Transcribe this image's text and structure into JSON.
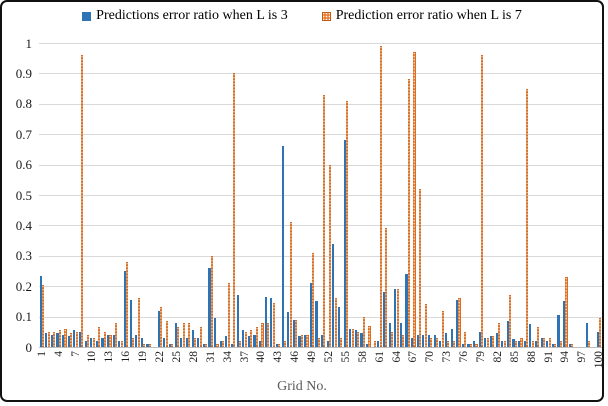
{
  "palette": {
    "series1_blue": "#2E74B5",
    "series2_orange": "#ED7D31",
    "gridline_gray": "#D9D9D9",
    "axis_title_gray": "#595959",
    "tick_text": "#1a1a1a",
    "frame_border": "#111111"
  },
  "legend": {
    "items": [
      {
        "label": "Predictions error ratio when L is 3",
        "marker": "solid-blue-square"
      },
      {
        "label": "Prediction error ratio when L is 7",
        "marker": "dotted-orange-square"
      }
    ]
  },
  "chart_data": {
    "type": "bar",
    "title": "",
    "xlabel": "Grid No.",
    "ylabel": "",
    "ylim": [
      0,
      1
    ],
    "ytick_labels": [
      "0",
      "0.1",
      "0.2",
      "0.3",
      "0.4",
      "0.5",
      "0.6",
      "0.7",
      "0.8",
      "0.9",
      "1"
    ],
    "grid": true,
    "legend_position": "top",
    "categories": [
      1,
      2,
      3,
      4,
      5,
      6,
      7,
      8,
      9,
      10,
      11,
      12,
      13,
      14,
      15,
      16,
      17,
      18,
      19,
      20,
      21,
      22,
      23,
      24,
      25,
      26,
      27,
      28,
      29,
      30,
      31,
      32,
      33,
      34,
      35,
      36,
      37,
      38,
      39,
      40,
      41,
      42,
      43,
      44,
      45,
      46,
      47,
      48,
      49,
      50,
      51,
      52,
      53,
      54,
      55,
      56,
      57,
      58,
      59,
      60,
      61,
      62,
      63,
      64,
      65,
      66,
      67,
      68,
      69,
      70,
      71,
      72,
      73,
      74,
      75,
      76,
      77,
      78,
      79,
      80,
      81,
      82,
      83,
      84,
      85,
      86,
      87,
      88,
      89,
      90,
      91,
      92,
      93,
      94,
      95,
      96,
      97,
      98,
      99,
      100
    ],
    "xtick_labels_shown": [
      "1",
      "4",
      "7",
      "10",
      "13",
      "16",
      "19",
      "22",
      "25",
      "28",
      "31",
      "34",
      "37",
      "40",
      "43",
      "46",
      "49",
      "52",
      "55",
      "58",
      "61",
      "64",
      "67",
      "70",
      "73",
      "76",
      "79",
      "82",
      "85",
      "88",
      "91",
      "94",
      "97",
      "100"
    ],
    "series": [
      {
        "name": "Predictions error ratio when L is 3",
        "color": "#2E74B5",
        "pattern": "solid",
        "values": [
          0.235,
          0.045,
          0.04,
          0.045,
          0.04,
          0.035,
          0.055,
          0.05,
          0.02,
          0.03,
          0.02,
          0.03,
          0.04,
          0.04,
          0.02,
          0.25,
          0.155,
          0.04,
          0.03,
          0.01,
          0,
          0.12,
          0.03,
          0.01,
          0.08,
          0.03,
          0.03,
          0.055,
          0.03,
          0.01,
          0.26,
          0.095,
          0.02,
          0.035,
          0.01,
          0.17,
          0.055,
          0.035,
          0.04,
          0.02,
          0.165,
          0.16,
          0.01,
          0.66,
          0.115,
          0.09,
          0.035,
          0.04,
          0.21,
          0.15,
          0.04,
          0.02,
          0.34,
          0.13,
          0.68,
          0.06,
          0.055,
          0.045,
          0.01,
          0,
          0.02,
          0.18,
          0.08,
          0.19,
          0.08,
          0.24,
          0.03,
          0.04,
          0.04,
          0.04,
          0.04,
          0.02,
          0.045,
          0.06,
          0.155,
          0.01,
          0.01,
          0.02,
          0.05,
          0.03,
          0.035,
          0.045,
          0.02,
          0.085,
          0.025,
          0.02,
          0.02,
          0.075,
          0.02,
          0.03,
          0.02,
          0.01,
          0.105,
          0.15,
          0.01,
          0,
          0,
          0.08,
          0,
          0.05
        ]
      },
      {
        "name": "Prediction error ratio when L is 7",
        "color": "#ED7D31",
        "pattern": "dotted",
        "values": [
          0.205,
          0.05,
          0.05,
          0.055,
          0.06,
          0.045,
          0.05,
          0.96,
          0.04,
          0.03,
          0.065,
          0.05,
          0.04,
          0.08,
          0.02,
          0.28,
          0.03,
          0.16,
          0.01,
          0.01,
          0,
          0.13,
          0.085,
          0.01,
          0.065,
          0.08,
          0.08,
          0.03,
          0.065,
          0.01,
          0.3,
          0.01,
          0.02,
          0.21,
          0.9,
          0.02,
          0.05,
          0.055,
          0.065,
          0.08,
          0.08,
          0.145,
          0.01,
          0.02,
          0.41,
          0.09,
          0.04,
          0.04,
          0.31,
          0.03,
          0.83,
          0.6,
          0.16,
          0.03,
          0.81,
          0.06,
          0.05,
          0.1,
          0.07,
          0.02,
          0.99,
          0.39,
          0.05,
          0.19,
          0.04,
          0.88,
          0.97,
          0.52,
          0.14,
          0.03,
          0.03,
          0.12,
          0.02,
          0.02,
          0.16,
          0.05,
          0.01,
          0.01,
          0.96,
          0.03,
          0.035,
          0.08,
          0.02,
          0.17,
          0.02,
          0.03,
          0.85,
          0.02,
          0.065,
          0.03,
          0.03,
          0.01,
          0.02,
          0.23,
          0.01,
          0,
          0,
          0.02,
          0,
          0.095
        ]
      }
    ]
  }
}
